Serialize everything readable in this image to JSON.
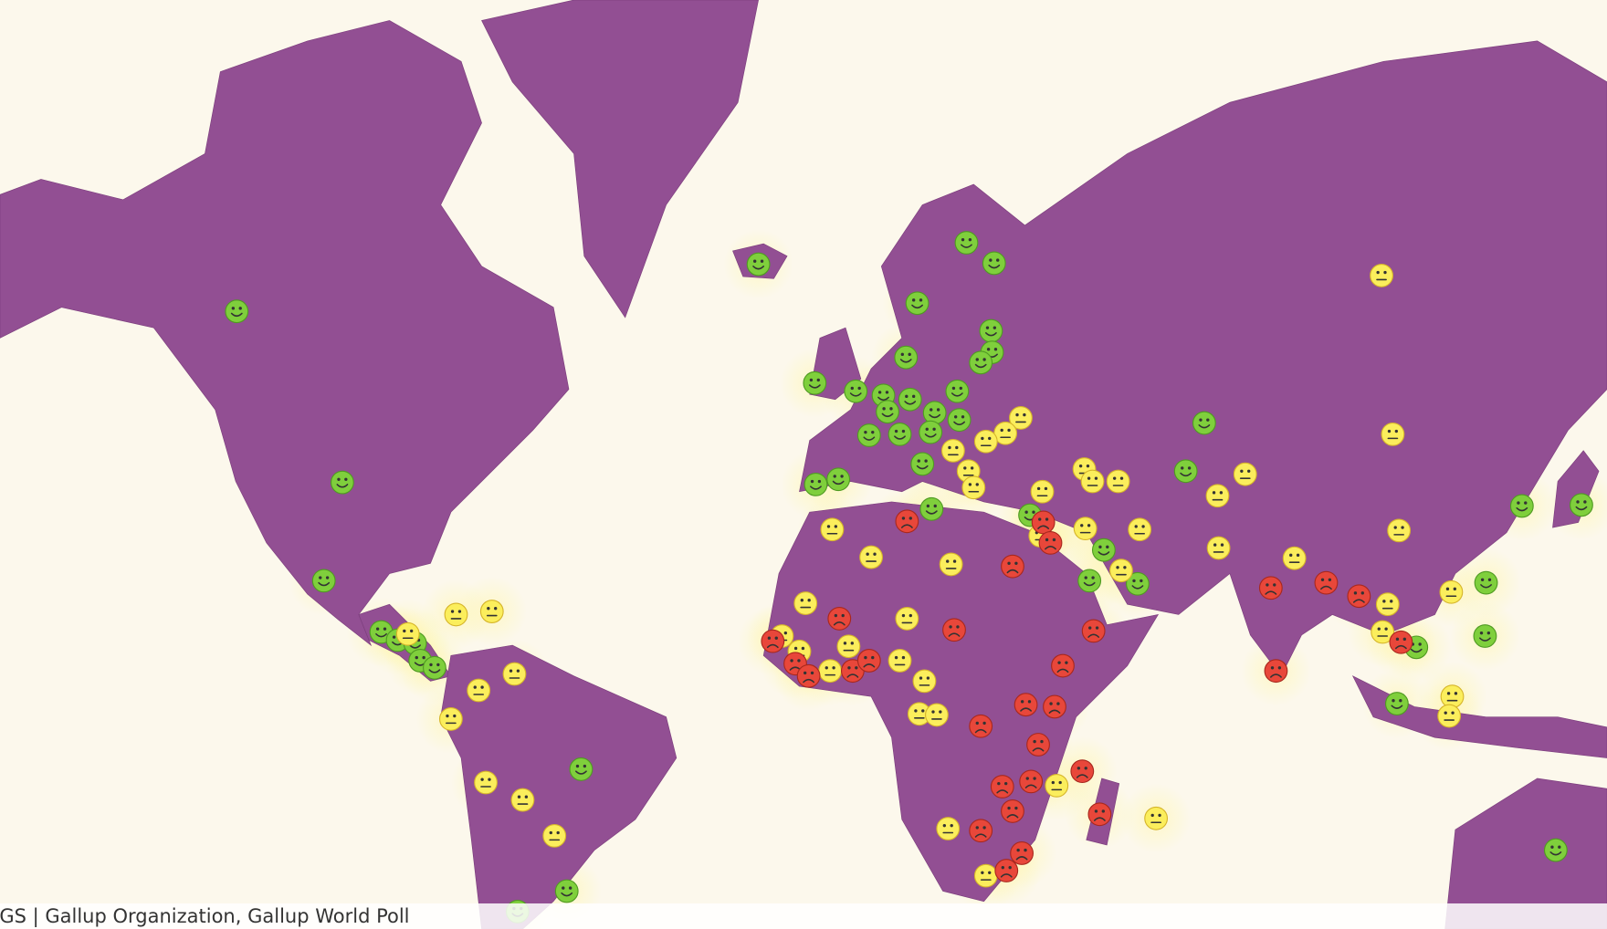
{
  "attribution": "SGS | Gallup Organization, Gallup World Poll"
}
